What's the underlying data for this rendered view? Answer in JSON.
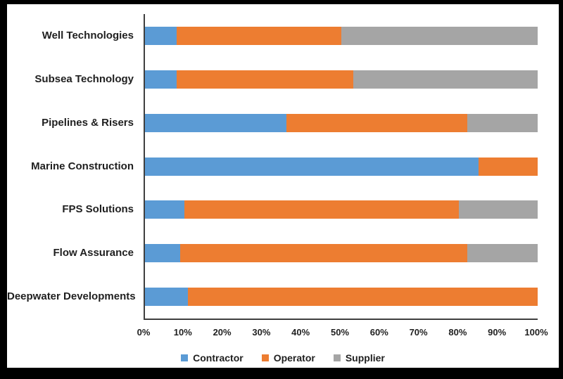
{
  "chart_data": {
    "type": "bar",
    "orientation": "horizontal",
    "stacked": true,
    "unit": "%",
    "categories": [
      "Well Technologies",
      "Subsea Technology",
      "Pipelines & Risers",
      "Marine Construction",
      "FPS Solutions",
      "Flow Assurance",
      "Deepwater Developments"
    ],
    "series": [
      {
        "name": "Contractor",
        "color": "#5B9BD5",
        "values": [
          8,
          8,
          36,
          85,
          10,
          9,
          11
        ]
      },
      {
        "name": "Operator",
        "color": "#ED7D31",
        "values": [
          42,
          45,
          46,
          15,
          70,
          73,
          89
        ]
      },
      {
        "name": "Supplier",
        "color": "#A5A5A5",
        "values": [
          50,
          47,
          18,
          0,
          20,
          18,
          0
        ]
      }
    ],
    "x_ticks": [
      "0%",
      "10%",
      "20%",
      "30%",
      "40%",
      "50%",
      "60%",
      "70%",
      "80%",
      "90%",
      "100%"
    ],
    "xlim": [
      0,
      100
    ],
    "grid": false,
    "legend_position": "bottom",
    "title": "",
    "xlabel": "",
    "ylabel": "",
    "colors": {
      "background": "#ffffff",
      "frame_border": "#000000",
      "axis_line": "#3f3f3f",
      "text": "#1f1f1f"
    }
  }
}
